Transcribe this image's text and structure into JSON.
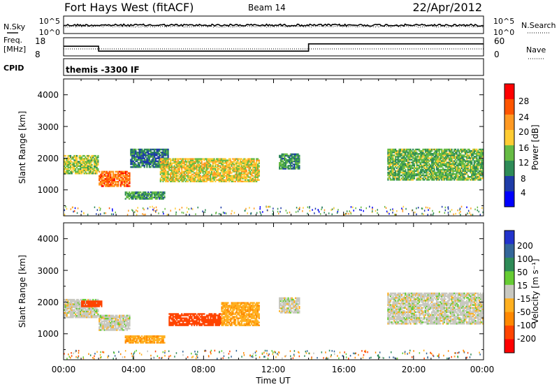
{
  "header": {
    "station": "Fort Hays West (fitACF)",
    "beam": "Beam 14",
    "date": "22/Apr/2012"
  },
  "top_panels": {
    "nsky_label": "N.Sky",
    "nsearch_label": "N.Search",
    "noise_ticks_left": [
      "10^5",
      "10^0"
    ],
    "noise_ticks_right": [
      "10^5",
      "10^0"
    ],
    "freq_label_1": "Freq.",
    "freq_label_2": "[MHz]",
    "freq_ticks": [
      "18",
      "8"
    ],
    "nave_label": "Nave",
    "nave_ticks": [
      "60",
      "0"
    ],
    "cpid_label": "CPID",
    "cpid_text": "themis -3300 IF",
    "freq_steps": [
      {
        "start_h": 0,
        "end_h": 2,
        "freq_mhz": 13.3
      },
      {
        "start_h": 2,
        "end_h": 14,
        "freq_mhz": 10.6
      },
      {
        "start_h": 14,
        "end_h": 24,
        "freq_mhz": 14.6
      }
    ]
  },
  "x_axis": {
    "ticks": [
      "00:00",
      "04:00",
      "08:00",
      "12:00",
      "16:00",
      "20:00",
      "00:00"
    ],
    "label": "Time UT"
  },
  "power_panel": {
    "ylabel": "Slant Range [km]",
    "yticks": [
      "1000",
      "2000",
      "3000",
      "4000"
    ],
    "colorbar_label": "Power [dB]",
    "colorbar_ticks": [
      "4",
      "8",
      "12",
      "16",
      "20",
      "24",
      "28"
    ],
    "colors": [
      "#0000ff",
      "#1e3ca8",
      "#2e8b57",
      "#66bb44",
      "#ffcc33",
      "#ff9922",
      "#ff5500",
      "#ff0000"
    ]
  },
  "velocity_panel": {
    "ylabel": "Slant Range [km]",
    "yticks": [
      "1000",
      "2000",
      "3000",
      "4000"
    ],
    "colorbar_label": "Velocity [m s⁻¹]",
    "colorbar_ticks": [
      "200",
      "100",
      "50",
      "15",
      "-15",
      "-50",
      "-100",
      "-200"
    ],
    "colors": [
      "#2233cc",
      "#336699",
      "#2e8b57",
      "#66cc33",
      "#c8c8c0",
      "#ffb020",
      "#ff8800",
      "#ff4400",
      "#ff0000"
    ]
  },
  "chart_data": [
    {
      "type": "heatmap",
      "title": "Fort Hays West (fitACF) Beam 14 22/Apr/2012",
      "xlabel": "Time UT",
      "ylabel": "Slant Range [km]",
      "xlim": [
        "00:00",
        "24:00"
      ],
      "ylim": [
        180,
        4500
      ],
      "colorbar": "Power [dB]",
      "colorbar_range": [
        3,
        30
      ],
      "regions": [
        {
          "t_start": 0.0,
          "t_end": 2.0,
          "range_low": 1500,
          "range_high": 2100,
          "power_db": 16
        },
        {
          "t_start": 2.0,
          "t_end": 3.8,
          "range_low": 1100,
          "range_high": 1600,
          "power_db": 24
        },
        {
          "t_start": 3.8,
          "t_end": 6.0,
          "range_low": 1700,
          "range_high": 2300,
          "power_db": 10
        },
        {
          "t_start": 3.5,
          "t_end": 5.8,
          "range_low": 700,
          "range_high": 950,
          "power_db": 12
        },
        {
          "t_start": 5.5,
          "t_end": 11.2,
          "range_low": 1250,
          "range_high": 2000,
          "power_db": 18
        },
        {
          "t_start": 12.3,
          "t_end": 13.5,
          "range_low": 1650,
          "range_high": 2150,
          "power_db": 12
        },
        {
          "t_start": 18.5,
          "t_end": 24.0,
          "range_low": 1300,
          "range_high": 2300,
          "power_db": 14
        }
      ]
    },
    {
      "type": "heatmap",
      "title": "Fort Hays West (fitACF) Beam 14 22/Apr/2012",
      "xlabel": "Time UT",
      "ylabel": "Slant Range [km]",
      "xlim": [
        "00:00",
        "24:00"
      ],
      "ylim": [
        180,
        4500
      ],
      "colorbar": "Velocity [m s⁻¹]",
      "colorbar_range": [
        -250,
        250
      ],
      "regions": [
        {
          "t_start": 0.0,
          "t_end": 2.0,
          "range_low": 1500,
          "range_high": 2100,
          "velocity": 0
        },
        {
          "t_start": 1.0,
          "t_end": 2.2,
          "range_low": 1850,
          "range_high": 2050,
          "velocity": -150
        },
        {
          "t_start": 2.0,
          "t_end": 3.8,
          "range_low": 1100,
          "range_high": 1600,
          "velocity": 0
        },
        {
          "t_start": 3.5,
          "t_end": 5.8,
          "range_low": 700,
          "range_high": 950,
          "velocity": -40
        },
        {
          "t_start": 6.0,
          "t_end": 9.0,
          "range_low": 1250,
          "range_high": 1650,
          "velocity": -150
        },
        {
          "t_start": 9.0,
          "t_end": 11.2,
          "range_low": 1250,
          "range_high": 2000,
          "velocity": -40
        },
        {
          "t_start": 12.3,
          "t_end": 13.5,
          "range_low": 1650,
          "range_high": 2150,
          "velocity": 0
        },
        {
          "t_start": 18.5,
          "t_end": 24.0,
          "range_low": 1300,
          "range_high": 2300,
          "velocity": 0
        }
      ]
    }
  ]
}
